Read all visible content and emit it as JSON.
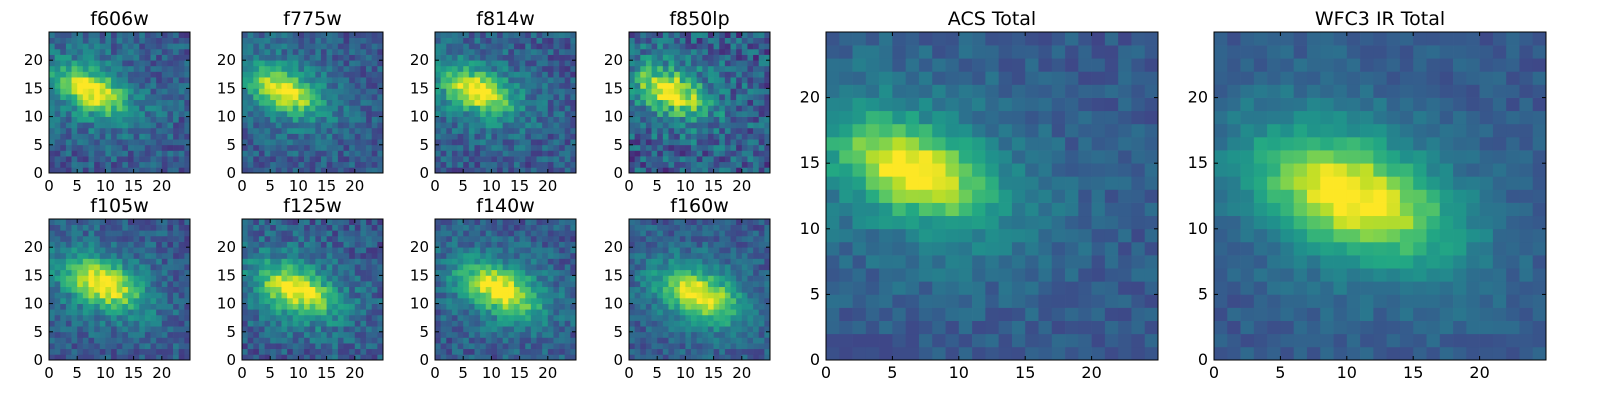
{
  "chart_data": {
    "type": "heatmap",
    "colormap": "viridis",
    "grid": false,
    "panels": [
      {
        "title": "f606w",
        "xticks": [
          "0",
          "5",
          "10",
          "15",
          "20"
        ],
        "yticks": [
          "0",
          "5",
          "10",
          "15",
          "20"
        ],
        "range": [
          0,
          25
        ],
        "peak": [
          7,
          14
        ],
        "noise": 0.55,
        "sharpness": 1.0,
        "seed": 11
      },
      {
        "title": "f775w",
        "xticks": [
          "0",
          "5",
          "10",
          "15",
          "20"
        ],
        "yticks": [
          "0",
          "5",
          "10",
          "15",
          "20"
        ],
        "range": [
          0,
          25
        ],
        "peak": [
          7,
          14
        ],
        "noise": 0.5,
        "sharpness": 1.0,
        "seed": 23
      },
      {
        "title": "f814w",
        "xticks": [
          "0",
          "5",
          "10",
          "15",
          "20"
        ],
        "yticks": [
          "0",
          "5",
          "10",
          "15",
          "20"
        ],
        "range": [
          0,
          25
        ],
        "peak": [
          7,
          14
        ],
        "noise": 0.55,
        "sharpness": 1.0,
        "seed": 37
      },
      {
        "title": "f850lp",
        "xticks": [
          "0",
          "5",
          "10",
          "15",
          "20"
        ],
        "yticks": [
          "0",
          "5",
          "10",
          "15",
          "20"
        ],
        "range": [
          0,
          25
        ],
        "peak": [
          7,
          14
        ],
        "noise": 0.75,
        "sharpness": 1.0,
        "seed": 41
      },
      {
        "title": "f105w",
        "xticks": [
          "0",
          "5",
          "10",
          "15",
          "20"
        ],
        "yticks": [
          "0",
          "5",
          "10",
          "15",
          "20"
        ],
        "range": [
          0,
          25
        ],
        "peak": [
          9,
          13
        ],
        "noise": 0.5,
        "sharpness": 0.8,
        "seed": 53
      },
      {
        "title": "f125w",
        "xticks": [
          "0",
          "5",
          "10",
          "15",
          "20"
        ],
        "yticks": [
          "0",
          "5",
          "10",
          "15",
          "20"
        ],
        "range": [
          0,
          25
        ],
        "peak": [
          9,
          12
        ],
        "noise": 0.55,
        "sharpness": 0.75,
        "seed": 67
      },
      {
        "title": "f140w",
        "xticks": [
          "0",
          "5",
          "10",
          "15",
          "20"
        ],
        "yticks": [
          "0",
          "5",
          "10",
          "15",
          "20"
        ],
        "range": [
          0,
          25
        ],
        "peak": [
          11,
          12
        ],
        "noise": 0.5,
        "sharpness": 0.75,
        "seed": 71
      },
      {
        "title": "f160w",
        "xticks": [
          "0",
          "5",
          "10",
          "15",
          "20"
        ],
        "yticks": [
          "0",
          "5",
          "10",
          "15",
          "20"
        ],
        "range": [
          0,
          25
        ],
        "peak": [
          12,
          11
        ],
        "noise": 0.45,
        "sharpness": 0.75,
        "seed": 83
      },
      {
        "title": "ACS Total",
        "xticks": [
          "0",
          "5",
          "10",
          "15",
          "20"
        ],
        "yticks": [
          "0",
          "5",
          "10",
          "15",
          "20"
        ],
        "range": [
          0,
          25
        ],
        "peak": [
          6,
          14
        ],
        "noise": 0.3,
        "sharpness": 1.1,
        "seed": 97
      },
      {
        "title": "WFC3 IR Total",
        "xticks": [
          "0",
          "5",
          "10",
          "15",
          "20"
        ],
        "yticks": [
          "0",
          "5",
          "10",
          "15",
          "20"
        ],
        "range": [
          0,
          25
        ],
        "peak": [
          10,
          12
        ],
        "noise": 0.25,
        "sharpness": 0.7,
        "seed": 101
      }
    ]
  }
}
